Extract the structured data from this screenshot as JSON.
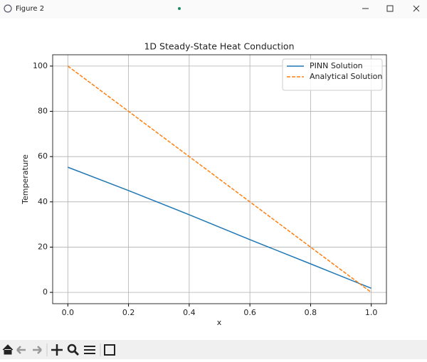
{
  "window_title": "Figure 2",
  "chart_data": {
    "type": "line",
    "title": "1D Steady-State Heat Conduction",
    "x_label": "x",
    "y_label": "Temperature",
    "x": [
      0,
      0.2,
      0.4,
      0.6,
      0.8,
      1.0
    ],
    "series": [
      {
        "name": "PINN Solution",
        "color": "#1f77b4",
        "linestyle": "solid",
        "values": [
          55.3,
          45.0,
          34.3,
          23.3,
          12.6,
          1.8
        ]
      },
      {
        "name": "Analytical Solution",
        "color": "#ff7f0e",
        "linestyle": "dashed",
        "values": [
          100,
          80,
          60,
          40,
          20,
          0
        ]
      }
    ],
    "xlim": [
      -0.05,
      1.05
    ],
    "ylim": [
      -5,
      105
    ],
    "xticks": [
      {
        "value": 0,
        "label": "0.0"
      },
      {
        "value": 0.2,
        "label": "0.2"
      },
      {
        "value": 0.4,
        "label": "0.4"
      },
      {
        "value": 0.6,
        "label": "0.6"
      },
      {
        "value": 0.8,
        "label": "0.8"
      },
      {
        "value": 1.0,
        "label": "1.0"
      }
    ],
    "yticks": [
      0,
      20,
      40,
      60,
      80,
      100
    ],
    "grid": true,
    "legend": "upper-right"
  }
}
